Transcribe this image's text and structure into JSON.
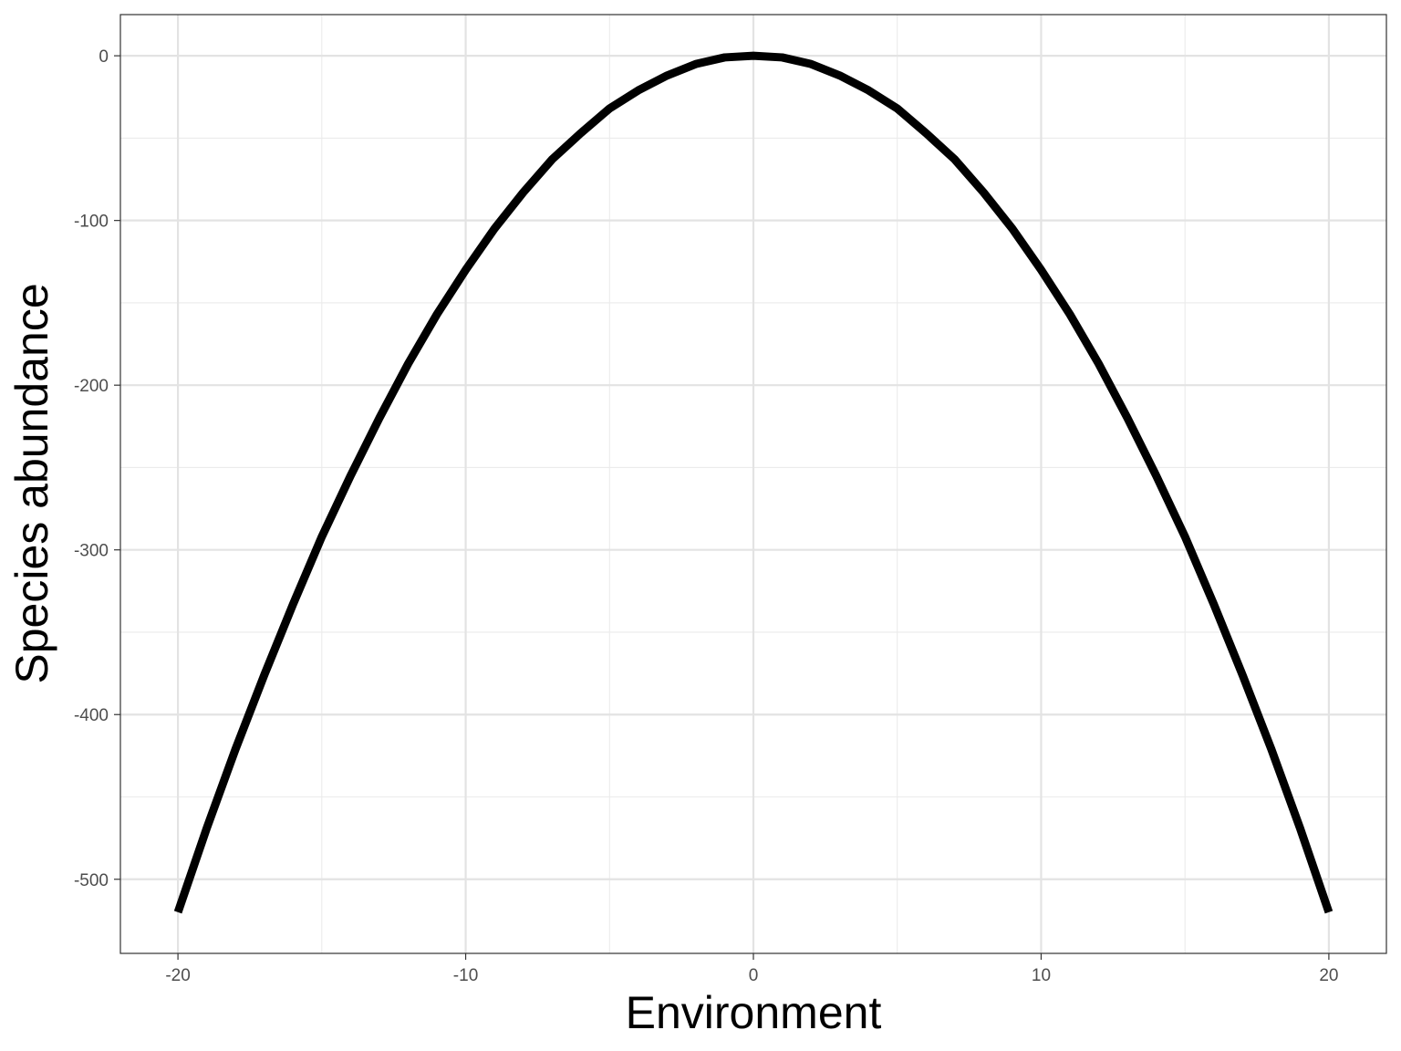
{
  "chart_data": {
    "type": "line",
    "title": "",
    "xlabel": "Environment",
    "ylabel": "Species abundance",
    "xlim": [
      -22,
      22
    ],
    "ylim": [
      -545,
      25
    ],
    "x_ticks": [
      -20,
      -10,
      0,
      10,
      20
    ],
    "x_tick_labels": [
      "-20",
      "-10",
      "0",
      "10",
      "20"
    ],
    "y_ticks": [
      0,
      -100,
      -200,
      -300,
      -400,
      -500
    ],
    "y_tick_labels": [
      "0",
      "-100",
      "-200",
      "-300",
      "-400",
      "-500"
    ],
    "grid": true,
    "series": [
      {
        "x": [
          -20,
          -19,
          -18,
          -17,
          -16,
          -15,
          -14,
          -13,
          -12,
          -11,
          -10,
          -9,
          -8,
          -7,
          -6,
          -5,
          -4,
          -3,
          -2,
          -1,
          0,
          1,
          2,
          3,
          4,
          5,
          6,
          7,
          8,
          9,
          10,
          11,
          12,
          13,
          14,
          15,
          16,
          17,
          18,
          19,
          20
        ],
        "y": [
          -520,
          -469,
          -421,
          -376,
          -333,
          -292,
          -255,
          -220,
          -187,
          -157,
          -130,
          -105,
          -83,
          -63,
          -47,
          -32,
          -21,
          -12,
          -5,
          -1,
          0,
          -1,
          -5,
          -12,
          -21,
          -32,
          -47,
          -63,
          -83,
          -105,
          -130,
          -157,
          -187,
          -220,
          -255,
          -292,
          -333,
          -376,
          -421,
          -469,
          -520
        ],
        "color": "#000000"
      }
    ]
  }
}
